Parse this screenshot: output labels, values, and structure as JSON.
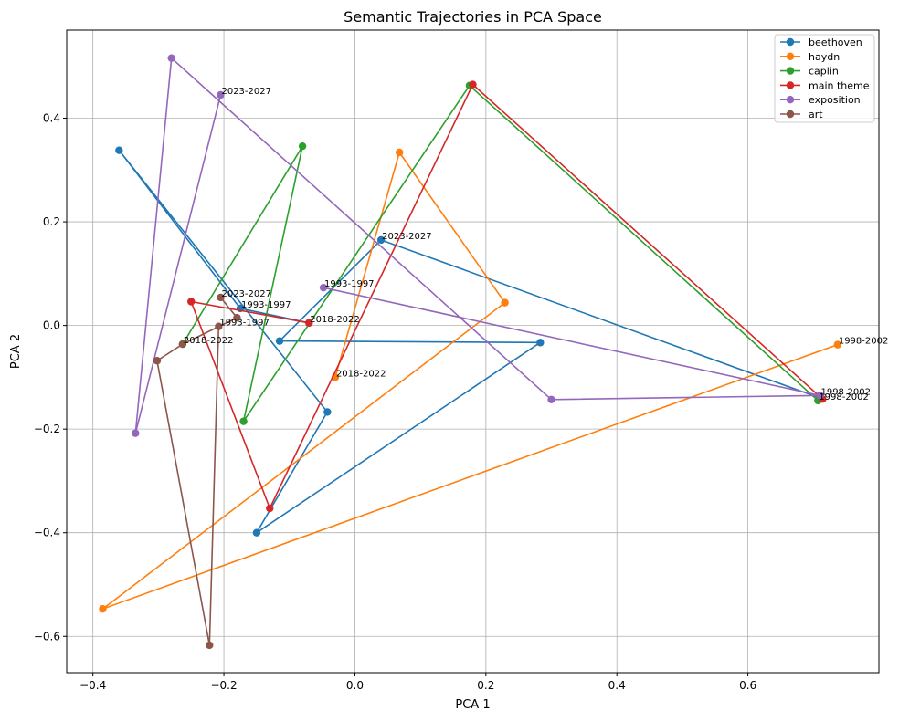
{
  "chart_data": {
    "type": "line",
    "title": "Semantic Trajectories in PCA Space",
    "xlabel": "PCA 1",
    "ylabel": "PCA 2",
    "xlim": [
      -0.44,
      0.8
    ],
    "ylim": [
      -0.67,
      0.57
    ],
    "xticks": [
      -0.4,
      -0.2,
      0.0,
      0.2,
      0.4,
      0.6
    ],
    "xtick_labels": [
      "−0.4",
      "−0.2",
      "0.0",
      "0.2",
      "0.4",
      "0.6"
    ],
    "yticks": [
      -0.6,
      -0.4,
      -0.2,
      0.0,
      0.2,
      0.4
    ],
    "ytick_labels": [
      "−0.6",
      "−0.4",
      "−0.2",
      "0.0",
      "0.2",
      "0.4"
    ],
    "grid": true,
    "legend_position": "top-right",
    "series": [
      {
        "name": "beethoven",
        "color": "#1f77b4",
        "points": [
          [
            0.71,
            -0.14
          ],
          [
            0.04,
            0.165
          ],
          [
            -0.115,
            -0.03
          ],
          [
            0.283,
            -0.033
          ],
          [
            -0.15,
            -0.4
          ],
          [
            -0.042,
            -0.167
          ],
          [
            -0.36,
            0.338
          ],
          [
            -0.175,
            0.033
          ],
          [
            -0.07,
            0.005
          ]
        ],
        "labels": [
          "",
          "2023-2027",
          "",
          "",
          "",
          "",
          "",
          "1993-1997",
          ""
        ]
      },
      {
        "name": "haydn",
        "color": "#ff7f0e",
        "points": [
          [
            -0.03,
            -0.1
          ],
          [
            0.068,
            0.334
          ],
          [
            0.229,
            0.044
          ],
          [
            -0.385,
            -0.547
          ],
          [
            0.737,
            -0.037
          ]
        ],
        "labels": [
          "2018-2022",
          "",
          "",
          "",
          "1998-2002"
        ]
      },
      {
        "name": "caplin",
        "color": "#2ca02c",
        "points": [
          [
            -0.263,
            -0.036
          ],
          [
            -0.08,
            0.346
          ],
          [
            -0.17,
            -0.185
          ],
          [
            0.175,
            0.463
          ],
          [
            0.707,
            -0.145
          ]
        ],
        "labels": [
          "2018-2022",
          "",
          "",
          "",
          "1998-2002"
        ]
      },
      {
        "name": "main theme",
        "color": "#d62728",
        "points": [
          [
            -0.07,
            0.005
          ],
          [
            -0.25,
            0.046
          ],
          [
            -0.13,
            -0.353
          ],
          [
            0.18,
            0.465
          ],
          [
            0.714,
            -0.142
          ]
        ],
        "labels": [
          "2018-2022",
          "",
          "",
          "",
          ""
        ]
      },
      {
        "name": "exposition",
        "color": "#9467bd",
        "points": [
          [
            -0.048,
            0.073
          ],
          [
            0.71,
            -0.135
          ],
          [
            0.3,
            -0.143
          ],
          [
            -0.28,
            0.516
          ],
          [
            -0.335,
            -0.208
          ],
          [
            -0.205,
            0.445
          ]
        ],
        "labels": [
          "1993-1997",
          "1998-2002",
          "",
          "",
          "",
          "2023-2027"
        ]
      },
      {
        "name": "art",
        "color": "#8c564b",
        "points": [
          [
            -0.208,
            -0.002
          ],
          [
            -0.222,
            -0.617
          ],
          [
            -0.302,
            -0.068
          ],
          [
            -0.263,
            -0.036
          ],
          [
            -0.18,
            0.015
          ],
          [
            -0.205,
            0.054
          ]
        ],
        "labels": [
          "1993-1997",
          "",
          "",
          "",
          "",
          "2023-2027"
        ]
      }
    ]
  }
}
